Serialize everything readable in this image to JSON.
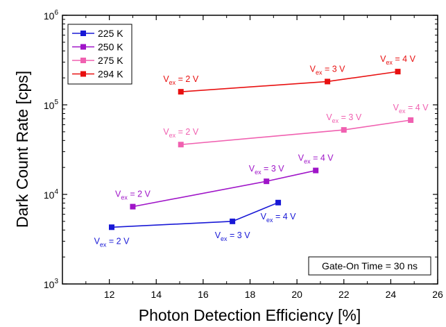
{
  "chart_data": {
    "type": "line",
    "xlabel": "Photon Detection Efficiency [%]",
    "ylabel": "Dark Count Rate [cps]",
    "x_scale": "linear",
    "y_scale": "log",
    "xlim": [
      10,
      26
    ],
    "ylim": [
      1000,
      1000000
    ],
    "x_ticks": [
      12,
      14,
      16,
      18,
      20,
      22,
      24,
      26
    ],
    "y_ticks": [
      {
        "value": 1000,
        "base": "10",
        "exp": "3"
      },
      {
        "value": 10000,
        "base": "10",
        "exp": "4"
      },
      {
        "value": 100000,
        "base": "10",
        "exp": "5"
      },
      {
        "value": 1000000,
        "base": "10",
        "exp": "6"
      }
    ],
    "legend_position": "top-left",
    "annotation": "Gate-On Time = 30 ns",
    "series": [
      {
        "name": "225 K",
        "color": "#1818d6",
        "points": [
          {
            "x": 12.1,
            "y": 4300,
            "label_main": "V",
            "label_sub": "ex",
            "label_rest": " = 2 V",
            "label_pos": "below"
          },
          {
            "x": 17.25,
            "y": 5000,
            "label_main": "V",
            "label_sub": "ex",
            "label_rest": " = 3 V",
            "label_pos": "below"
          },
          {
            "x": 19.2,
            "y": 8100,
            "label_main": "V",
            "label_sub": "ex",
            "label_rest": " = 4 V",
            "label_pos": "below"
          }
        ]
      },
      {
        "name": "250 K",
        "color": "#9f14c8",
        "points": [
          {
            "x": 13.0,
            "y": 7300,
            "label_main": "V",
            "label_sub": "ex",
            "label_rest": " = 2 V",
            "label_pos": "above"
          },
          {
            "x": 18.7,
            "y": 14000,
            "label_main": "V",
            "label_sub": "ex",
            "label_rest": " = 3 V",
            "label_pos": "above"
          },
          {
            "x": 20.8,
            "y": 18500,
            "label_main": "V",
            "label_sub": "ex",
            "label_rest": " = 4 V",
            "label_pos": "above"
          }
        ]
      },
      {
        "name": "275 K",
        "color": "#f060b0",
        "points": [
          {
            "x": 15.05,
            "y": 36000,
            "label_main": "V",
            "label_sub": "ex",
            "label_rest": " = 2 V",
            "label_pos": "above"
          },
          {
            "x": 22.0,
            "y": 52500,
            "label_main": "V",
            "label_sub": "ex",
            "label_rest": " = 3 V",
            "label_pos": "above"
          },
          {
            "x": 24.85,
            "y": 67500,
            "label_main": "V",
            "label_sub": "ex",
            "label_rest": " = 4 V",
            "label_pos": "above"
          }
        ]
      },
      {
        "name": "294 K",
        "color": "#e81010",
        "points": [
          {
            "x": 15.05,
            "y": 140000,
            "label_main": "V",
            "label_sub": "ex",
            "label_rest": " = 2 V",
            "label_pos": "above"
          },
          {
            "x": 21.3,
            "y": 182000,
            "label_main": "V",
            "label_sub": "ex",
            "label_rest": " = 3 V",
            "label_pos": "above"
          },
          {
            "x": 24.3,
            "y": 235000,
            "label_main": "V",
            "label_sub": "ex",
            "label_rest": " = 4 V",
            "label_pos": "above"
          }
        ]
      }
    ]
  }
}
